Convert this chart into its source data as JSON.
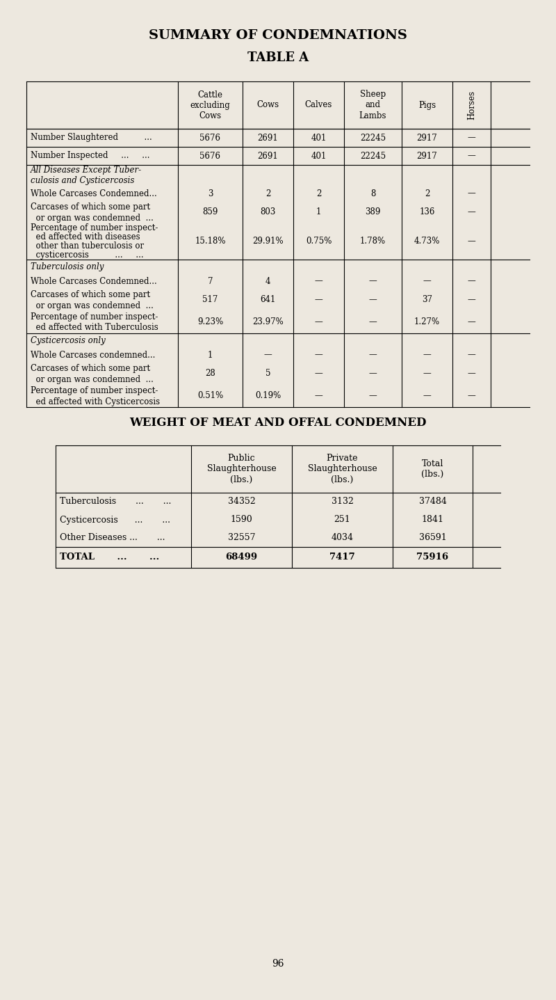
{
  "bg_color": "#ede8df",
  "title1": "SUMMARY OF CONDEMNATIONS",
  "title2": "TABLE A",
  "page_number": "96",
  "em_dash": "—",
  "table2_title": "WEIGHT OF MEAT AND OFFAL CONDEMNED",
  "t2_rows": [
    {
      "label": "Tuberculosis       ...       ...",
      "values": [
        "34352",
        "3132",
        "37484"
      ]
    },
    {
      "label": "Cysticercosis      ...       ...",
      "values": [
        "1590",
        "251",
        "1841"
      ]
    },
    {
      "label": "Other Diseases ...       ...",
      "values": [
        "32557",
        "4034",
        "36591"
      ]
    }
  ],
  "t2_total": {
    "label": "TOTAL       ...       ...",
    "values": [
      "68499",
      "7417",
      "75916"
    ]
  }
}
